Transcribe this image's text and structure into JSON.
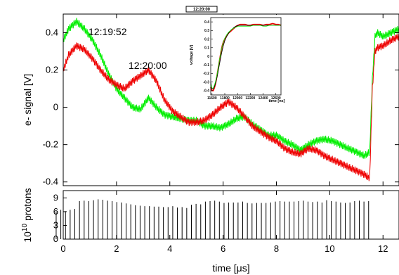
{
  "chart_data": [
    {
      "type": "line",
      "ylabel": "e- signal [V]",
      "xlim": [
        0,
        12.6
      ],
      "ylim": [
        -0.42,
        0.5
      ],
      "yticks": [
        -0.4,
        -0.2,
        0,
        0.2,
        0.4
      ],
      "ytick_labels": [
        "-0.4",
        "-0.2",
        "0",
        "0.2",
        "0.4"
      ],
      "grid": false,
      "annotations": [
        "12:19:52",
        "12:20:00"
      ],
      "series": [
        {
          "name": "12:19:52",
          "color": "#00ee00",
          "x": [
            0,
            0.2,
            0.5,
            0.8,
            1.1,
            1.4,
            1.7,
            2.0,
            2.3,
            2.6,
            2.9,
            3.2,
            3.5,
            3.8,
            4.1,
            4.4,
            4.7,
            5.0,
            5.3,
            5.6,
            5.9,
            6.2,
            6.5,
            6.8,
            7.1,
            7.4,
            7.7,
            8.0,
            8.3,
            8.6,
            8.9,
            9.2,
            9.5,
            9.8,
            10.1,
            10.4,
            10.7,
            11.0,
            11.3,
            11.5,
            11.6,
            11.7,
            11.8,
            12.0,
            12.3,
            12.6
          ],
          "values": [
            0.36,
            0.42,
            0.46,
            0.42,
            0.36,
            0.28,
            0.18,
            0.1,
            0.05,
            0.0,
            -0.01,
            0.05,
            0.0,
            -0.04,
            -0.05,
            -0.06,
            -0.07,
            -0.07,
            -0.1,
            -0.1,
            -0.11,
            -0.09,
            -0.06,
            -0.05,
            -0.09,
            -0.12,
            -0.15,
            -0.15,
            -0.18,
            -0.2,
            -0.23,
            -0.2,
            -0.18,
            -0.17,
            -0.18,
            -0.2,
            -0.22,
            -0.24,
            -0.26,
            -0.24,
            0.15,
            0.38,
            0.4,
            0.38,
            0.4,
            0.42
          ]
        },
        {
          "name": "12:20:00",
          "color": "#ee0000",
          "x": [
            0,
            0.2,
            0.5,
            0.8,
            1.1,
            1.4,
            1.7,
            2.0,
            2.3,
            2.6,
            2.9,
            3.2,
            3.5,
            3.8,
            4.1,
            4.4,
            4.7,
            5.0,
            5.3,
            5.6,
            5.9,
            6.2,
            6.5,
            6.8,
            7.1,
            7.4,
            7.7,
            8.0,
            8.3,
            8.6,
            8.9,
            9.2,
            9.5,
            9.8,
            10.1,
            10.4,
            10.7,
            11.0,
            11.3,
            11.5,
            11.6,
            11.7,
            11.8,
            12.0,
            12.3,
            12.6
          ],
          "values": [
            0.2,
            0.28,
            0.33,
            0.31,
            0.26,
            0.2,
            0.15,
            0.12,
            0.1,
            0.14,
            0.17,
            0.2,
            0.14,
            0.04,
            -0.02,
            -0.05,
            -0.08,
            -0.08,
            -0.07,
            -0.04,
            0.0,
            0.03,
            0.0,
            -0.05,
            -0.1,
            -0.13,
            -0.16,
            -0.18,
            -0.22,
            -0.24,
            -0.25,
            -0.22,
            -0.23,
            -0.26,
            -0.28,
            -0.3,
            -0.32,
            -0.34,
            -0.36,
            -0.38,
            0.1,
            0.3,
            0.32,
            0.33,
            0.36,
            0.38
          ]
        }
      ]
    },
    {
      "type": "bar",
      "xlabel": "time [μs]",
      "ylabel_prefix": "10",
      "ylabel_exp": "10",
      "ylabel_suffix": " protons",
      "xlim": [
        0,
        12.6
      ],
      "ylim": [
        0,
        10.6
      ],
      "xticks": [
        0,
        2,
        4,
        6,
        8,
        10,
        12
      ],
      "xtick_labels": [
        "0",
        "2",
        "4",
        "6",
        "8",
        "10",
        "12"
      ],
      "yticks": [
        0,
        3,
        6,
        9
      ],
      "ytick_labels": [
        "0",
        "3",
        "6",
        "9"
      ],
      "bunch_spacing": 0.175,
      "last_bunch_time": 11.46,
      "values": [
        6.0,
        6.4,
        6.1,
        6.4,
        6.6,
        8.3,
        8.4,
        8.3,
        8.5,
        8.7,
        8.6,
        8.4,
        8.3,
        8.1,
        8.0,
        7.8,
        7.6,
        7.4,
        7.3,
        7.2,
        7.2,
        7.1,
        7.1,
        7.0,
        7.0,
        7.2,
        6.9,
        7.0,
        6.8,
        7.5,
        7.7,
        7.6,
        8.2,
        8.3,
        8.4,
        8.2,
        7.9,
        8.0,
        8.0,
        8.0,
        8.2,
        7.9,
        7.8,
        7.9,
        7.9,
        7.9,
        8.0,
        8.2,
        8.3,
        8.2,
        8.2,
        8.2,
        8.3,
        8.4,
        8.2,
        8.1,
        8.2,
        8.0,
        8.5,
        8.3,
        8.2,
        8.0,
        7.9,
        8.0,
        8.3,
        8.4,
        8.2,
        8.3
      ]
    },
    {
      "type": "line",
      "title": "12:20:00",
      "xlabel": "time [ns]",
      "ylabel": "voltage [V]",
      "xlim": [
        11580,
        12680
      ],
      "ylim": [
        -0.45,
        0.45
      ],
      "xticks": [
        11600,
        11800,
        12000,
        12200,
        12400,
        12600
      ],
      "xtick_labels": [
        "11600",
        "11800",
        "12000",
        "12200",
        "12400",
        "12600"
      ],
      "yticks": [
        -0.4,
        -0.3,
        -0.2,
        -0.1,
        0,
        0.1,
        0.2,
        0.3,
        0.4
      ],
      "ytick_labels": [
        "-0.4",
        "-0.3",
        "-0.2",
        "-0.1",
        "0",
        "0.1",
        "0.2",
        "0.3",
        "0.4"
      ],
      "series": [
        {
          "color": "#ee0000",
          "x": [
            11580,
            11600,
            11620,
            11640,
            11660,
            11680,
            11700,
            11720,
            11740,
            11760,
            11780,
            11800,
            11830,
            11860,
            11890,
            11920,
            11950,
            11980,
            12010,
            12040,
            12080,
            12120,
            12160,
            12200,
            12250,
            12300,
            12350,
            12400,
            12450,
            12500,
            12550,
            12600,
            12640,
            12680
          ],
          "values": [
            -0.36,
            -0.4,
            -0.4,
            -0.36,
            -0.3,
            -0.22,
            -0.13,
            -0.04,
            0.05,
            0.12,
            0.17,
            0.2,
            0.24,
            0.27,
            0.29,
            0.31,
            0.33,
            0.35,
            0.36,
            0.37,
            0.37,
            0.37,
            0.36,
            0.36,
            0.37,
            0.37,
            0.37,
            0.36,
            0.37,
            0.37,
            0.38,
            0.37,
            0.37,
            0.36
          ]
        },
        {
          "color": "#000000",
          "x": [
            11580,
            11600,
            11620,
            11640,
            11660,
            11680,
            11700,
            11720,
            11740,
            11760,
            11780,
            11800,
            11830,
            11860,
            11890,
            11920,
            11950,
            11980,
            12010,
            12040,
            12080,
            12120,
            12160,
            12200,
            12250,
            12300,
            12350,
            12400,
            12450,
            12500,
            12550,
            12600,
            12640,
            12680
          ],
          "values": [
            -0.3,
            -0.38,
            -0.38,
            -0.35,
            -0.3,
            -0.24,
            -0.16,
            -0.08,
            0.0,
            0.07,
            0.13,
            0.18,
            0.23,
            0.27,
            0.3,
            0.32,
            0.34,
            0.35,
            0.36,
            0.36,
            0.36,
            0.36,
            0.36,
            0.36,
            0.36,
            0.36,
            0.36,
            0.36,
            0.36,
            0.36,
            0.36,
            0.36,
            0.36,
            0.36
          ]
        },
        {
          "color": "#00ee00",
          "x": [
            11580,
            11600,
            11620,
            11640,
            11660,
            11680,
            11700,
            11720,
            11740,
            11760,
            11780,
            11800,
            11830,
            11860,
            11890,
            11920,
            11950,
            11980,
            12010,
            12040,
            12080,
            12120,
            12160,
            12200,
            12250,
            12300,
            12350,
            12400,
            12450,
            12500,
            12550,
            12600,
            12640,
            12680
          ],
          "values": [
            -0.32,
            -0.37,
            -0.37,
            -0.33,
            -0.28,
            -0.21,
            -0.12,
            -0.03,
            0.05,
            0.12,
            0.17,
            0.21,
            0.25,
            0.28,
            0.3,
            0.32,
            0.33,
            0.34,
            0.35,
            0.35,
            0.35,
            0.35,
            0.35,
            0.35,
            0.36,
            0.36,
            0.36,
            0.35,
            0.35,
            0.36,
            0.36,
            0.36,
            0.36,
            0.36
          ]
        }
      ]
    }
  ]
}
